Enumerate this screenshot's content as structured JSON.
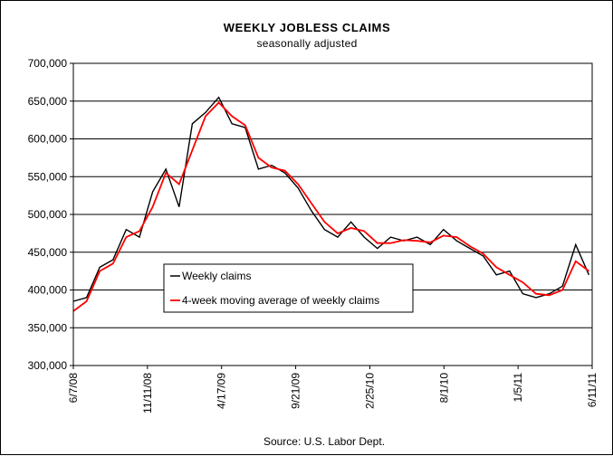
{
  "chart_data": {
    "type": "line",
    "title": "WEEKLY JOBLESS CLAIMS",
    "subtitle": "seasonally adjusted",
    "source": "Source: U.S. Labor Dept.",
    "ylim": [
      300000,
      700000
    ],
    "y_ticks": [
      300000,
      350000,
      400000,
      450000,
      500000,
      550000,
      600000,
      650000,
      700000
    ],
    "y_tick_labels": [
      "300,000",
      "350,000",
      "400,000",
      "450,000",
      "500,000",
      "550,000",
      "600,000",
      "650,000",
      "700,000"
    ],
    "x_range": [
      "2008-06-07",
      "2011-06-11"
    ],
    "x_ticks": [
      "2008-06-07",
      "2008-11-11",
      "2009-04-17",
      "2009-09-21",
      "2010-02-25",
      "2010-08-01",
      "2011-01-05",
      "2011-06-11"
    ],
    "x_tick_labels": [
      "6/7/08",
      "11/11/08",
      "4/17/09",
      "9/21/09",
      "2/25/10",
      "8/1/10",
      "1/5/11",
      "6/11/11"
    ],
    "grid": "horizontal",
    "legend_placement": "lower-left",
    "series": [
      {
        "name": "Weekly claims",
        "color": "#000000",
        "x": [
          "2008-06-07",
          "2008-07-05",
          "2008-08-02",
          "2008-08-30",
          "2008-09-27",
          "2008-10-25",
          "2008-11-22",
          "2008-12-20",
          "2009-01-17",
          "2009-02-14",
          "2009-03-14",
          "2009-04-11",
          "2009-05-09",
          "2009-06-06",
          "2009-07-04",
          "2009-08-01",
          "2009-08-29",
          "2009-09-26",
          "2009-10-24",
          "2009-11-21",
          "2009-12-19",
          "2010-01-16",
          "2010-02-13",
          "2010-03-13",
          "2010-04-10",
          "2010-05-08",
          "2010-06-05",
          "2010-07-03",
          "2010-07-31",
          "2010-08-28",
          "2010-09-25",
          "2010-10-23",
          "2010-11-20",
          "2010-12-18",
          "2011-01-15",
          "2011-02-12",
          "2011-03-12",
          "2011-04-09",
          "2011-05-07",
          "2011-06-04"
        ],
        "values": [
          385000,
          390000,
          430000,
          440000,
          480000,
          470000,
          530000,
          560000,
          510000,
          620000,
          635000,
          655000,
          620000,
          615000,
          560000,
          565000,
          555000,
          535000,
          505000,
          480000,
          470000,
          490000,
          470000,
          455000,
          470000,
          465000,
          470000,
          460000,
          480000,
          465000,
          455000,
          445000,
          420000,
          425000,
          395000,
          390000,
          395000,
          405000,
          460000,
          420000
        ]
      },
      {
        "name": "4-week moving average of weekly claims",
        "color": "#ff0000",
        "x": [
          "2008-06-07",
          "2008-07-05",
          "2008-08-02",
          "2008-08-30",
          "2008-09-27",
          "2008-10-25",
          "2008-11-22",
          "2008-12-20",
          "2009-01-17",
          "2009-02-14",
          "2009-03-14",
          "2009-04-11",
          "2009-05-09",
          "2009-06-06",
          "2009-07-04",
          "2009-08-01",
          "2009-08-29",
          "2009-09-26",
          "2009-10-24",
          "2009-11-21",
          "2009-12-19",
          "2010-01-16",
          "2010-02-13",
          "2010-03-13",
          "2010-04-10",
          "2010-05-08",
          "2010-06-05",
          "2010-07-03",
          "2010-07-31",
          "2010-08-28",
          "2010-09-25",
          "2010-10-23",
          "2010-11-20",
          "2010-12-18",
          "2011-01-15",
          "2011-02-12",
          "2011-03-12",
          "2011-04-09",
          "2011-05-07",
          "2011-06-04"
        ],
        "values": [
          372000,
          385000,
          425000,
          435000,
          470000,
          478000,
          510000,
          555000,
          540000,
          585000,
          630000,
          648000,
          630000,
          618000,
          575000,
          562000,
          558000,
          540000,
          515000,
          490000,
          475000,
          482000,
          478000,
          462000,
          462000,
          466000,
          465000,
          463000,
          472000,
          470000,
          458000,
          448000,
          430000,
          420000,
          410000,
          395000,
          393000,
          400000,
          438000,
          425000
        ]
      }
    ]
  }
}
